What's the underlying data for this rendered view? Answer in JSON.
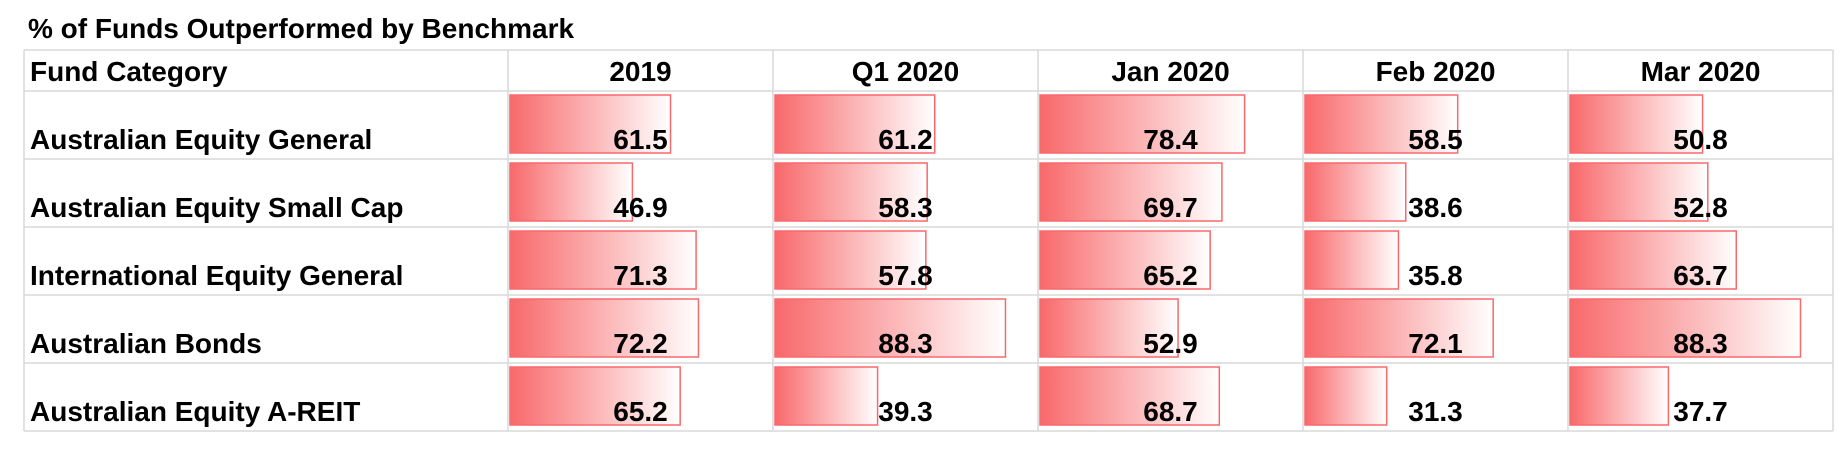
{
  "title": "% of Funds Outperformed by Benchmark",
  "table": {
    "header": [
      "Fund Category",
      "2019",
      "Q1 2020",
      "Jan 2020",
      "Feb 2020",
      "Mar 2020"
    ],
    "rows": [
      {
        "label": "Australian Equity General",
        "values": [
          61.5,
          61.2,
          78.4,
          58.5,
          50.8
        ]
      },
      {
        "label": "Australian Equity Small Cap",
        "values": [
          46.9,
          58.3,
          69.7,
          38.6,
          52.8
        ]
      },
      {
        "label": "International Equity General",
        "values": [
          71.3,
          57.8,
          65.2,
          35.8,
          63.7
        ]
      },
      {
        "label": "Australian Bonds",
        "values": [
          72.2,
          88.3,
          52.9,
          72.1,
          88.3
        ]
      },
      {
        "label": "Australian Equity A-REIT",
        "values": [
          65.2,
          39.3,
          68.7,
          31.3,
          37.7
        ]
      }
    ]
  }
}
